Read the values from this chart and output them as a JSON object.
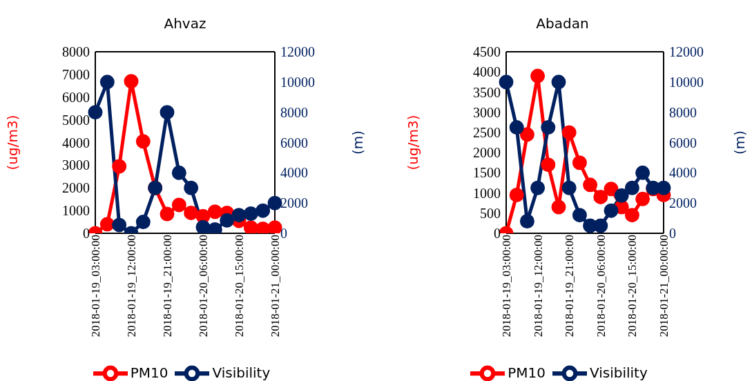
{
  "chart_data": [
    {
      "type": "line",
      "title": "Ahvaz",
      "ylabel": "(ug/m3)",
      "y2label": "(m)",
      "categories": [
        "2018-01-19_03:00:00",
        null,
        null,
        "2018-01-19_12:00:00",
        null,
        null,
        "2018-01-19_21:00:00",
        null,
        null,
        "2018-01-20_06:00:00",
        null,
        null,
        "2018-01-20_15:00:00",
        null,
        null,
        "2018-01-21_00:00:00"
      ],
      "series": [
        {
          "name": "PM10",
          "color": "#ff0000",
          "values": [
            0,
            400,
            2950,
            6700,
            4050,
            2000,
            850,
            1250,
            900,
            750,
            950,
            900,
            550,
            250,
            200,
            250
          ]
        },
        {
          "name": "Visibility",
          "color": "#002060",
          "axis": "y2",
          "values": [
            8000,
            10000,
            550,
            0,
            750,
            3000,
            8000,
            4000,
            3000,
            400,
            250,
            850,
            1200,
            1300,
            1500,
            2000
          ]
        }
      ],
      "ylim": [
        0,
        8000
      ],
      "yticks": [
        0,
        1000,
        2000,
        3000,
        4000,
        5000,
        6000,
        7000,
        8000
      ],
      "y2lim": [
        0,
        12000
      ],
      "y2ticks": [
        0,
        2000,
        4000,
        6000,
        8000,
        10000,
        12000
      ],
      "grid": false,
      "legend": "bottom",
      "marker": "circle",
      "line_style": "solid"
    },
    {
      "type": "line",
      "title": "Abadan",
      "ylabel": "(ug/m3)",
      "y2label": "(m)",
      "categories": [
        "2018-01-19_03:00:00",
        null,
        null,
        "2018-01-19_12:00:00",
        null,
        null,
        "2018-01-19_21:00:00",
        null,
        null,
        "2018-01-20_06:00:00",
        null,
        null,
        "2018-01-20_15:00:00",
        null,
        null,
        "2018-01-21_00:00:00"
      ],
      "series": [
        {
          "name": "PM10",
          "color": "#ff0000",
          "values": [
            0,
            950,
            2450,
            3900,
            1700,
            650,
            2500,
            1750,
            1200,
            900,
            1100,
            650,
            450,
            850,
            1100,
            950
          ]
        },
        {
          "name": "Visibility",
          "color": "#002060",
          "axis": "y2",
          "values": [
            10000,
            7000,
            800,
            3000,
            7000,
            10000,
            3000,
            1200,
            500,
            500,
            1500,
            2500,
            3000,
            4000,
            3000,
            3000
          ]
        }
      ],
      "ylim": [
        0,
        4500
      ],
      "yticks": [
        0,
        500,
        1000,
        1500,
        2000,
        2500,
        3000,
        3500,
        4000,
        4500
      ],
      "y2lim": [
        0,
        12000
      ],
      "y2ticks": [
        0,
        2000,
        4000,
        6000,
        8000,
        10000,
        12000
      ],
      "grid": false,
      "legend": "bottom",
      "marker": "circle",
      "line_style": "solid"
    }
  ]
}
